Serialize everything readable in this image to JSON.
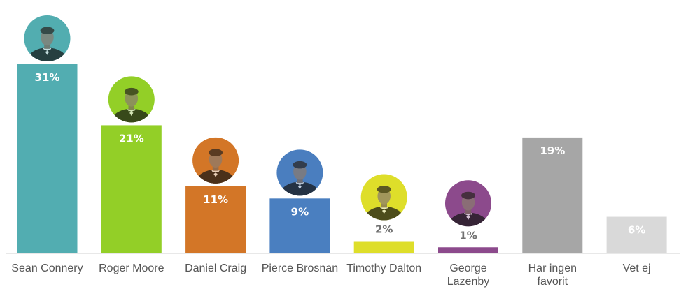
{
  "chart_data": {
    "type": "bar",
    "categories": [
      [
        "Sean Connery"
      ],
      [
        "Roger Moore"
      ],
      [
        "Daniel Craig"
      ],
      [
        "Pierce Brosnan"
      ],
      [
        "Timothy Dalton"
      ],
      [
        "George",
        "Lazenby"
      ],
      [
        "Har ingen",
        "favorit"
      ],
      [
        "Vet ej"
      ]
    ],
    "values": [
      31,
      21,
      11,
      9,
      2,
      1,
      19,
      6
    ],
    "value_labels": [
      "31%",
      "21%",
      "11%",
      "9%",
      "2%",
      "1%",
      "19%",
      "6%"
    ],
    "colors": [
      "#52adb1",
      "#93cf27",
      "#d37627",
      "#4a7fc0",
      "#dede2a",
      "#8c4a8c",
      "#a6a6a6",
      "#d9d9d9"
    ],
    "portrait_icons": [
      "sean-connery-portrait-icon",
      "roger-moore-portrait-icon",
      "daniel-craig-portrait-icon",
      "pierce-brosnan-portrait-icon",
      "timothy-dalton-portrait-icon",
      "george-lazenby-portrait-icon",
      null,
      null
    ],
    "ylim": [
      0,
      31
    ],
    "grid": false,
    "legend": "none"
  }
}
